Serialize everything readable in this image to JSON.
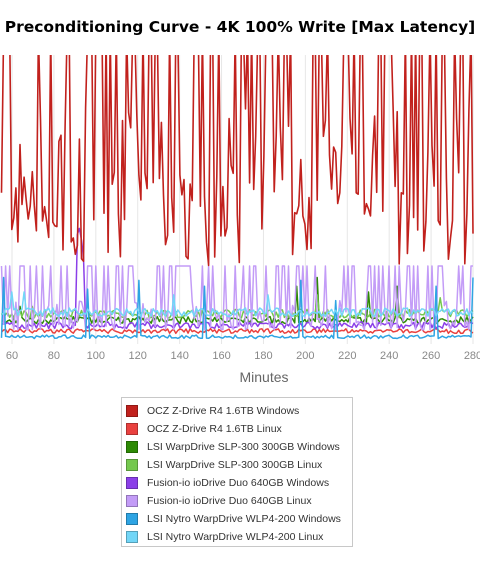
{
  "chart_data": {
    "type": "line",
    "title": "Preconditioning Curve - 4K 100% Write [Max Latency]",
    "xlabel": "Minutes",
    "ylabel": "",
    "xlim": [
      55,
      280
    ],
    "ylim": [
      0,
      100
    ],
    "xticks": [
      60,
      80,
      100,
      120,
      140,
      160,
      180,
      200,
      220,
      240,
      260,
      280
    ],
    "grid": "vertical",
    "legend_position": "bottom",
    "series": [
      {
        "name": "OCZ Z-Drive R4 1.6TB Windows",
        "color": "#c1211d",
        "pattern": {
          "type": "spiky",
          "base": 60,
          "amp": 44,
          "min": 27,
          "max": 100,
          "clip_top": true,
          "seed": 11,
          "steps": 230
        }
      },
      {
        "name": "OCZ Z-Drive R4 1.6TB Linux",
        "color": "#e9413f",
        "pattern": {
          "type": "noise",
          "base": 4.5,
          "amp": 0.8,
          "seed": 3,
          "steps": 230
        }
      },
      {
        "name": "LSI WarpDrive SLP-300 300GB Windows",
        "color": "#2d8a04",
        "pattern": {
          "type": "noise",
          "base": 8.3,
          "amp": 1.2,
          "seed": 5,
          "steps": 230,
          "spikes": [
            [
              64,
              13
            ],
            [
              196,
              20
            ],
            [
              206,
              23
            ],
            [
              230,
              18
            ],
            [
              244,
              20
            ]
          ]
        }
      },
      {
        "name": "LSI WarpDrive SLP-300 300GB Linux",
        "color": "#74c84e",
        "pattern": {
          "type": "noise",
          "base": 10.5,
          "amp": 1.5,
          "seed": 7,
          "steps": 230,
          "spikes": [
            [
              70,
              13
            ],
            [
              206,
              17
            ],
            [
              264,
              16
            ]
          ]
        }
      },
      {
        "name": "Fusion-io ioDrive Duo 640GB Windows",
        "color": "#8b3fe8",
        "pattern": {
          "type": "noise",
          "base": 6.5,
          "amp": 1.2,
          "seed": 9,
          "steps": 230,
          "spikes": [
            [
              91,
              38
            ],
            [
              92,
              40
            ],
            [
              93,
              36
            ],
            [
              94,
              30
            ]
          ]
        }
      },
      {
        "name": "Fusion-io ioDrive Duo 640GB Linux",
        "color": "#c39cf7",
        "pattern": {
          "type": "spiky",
          "base": 9,
          "amp": 12,
          "min": 5,
          "max": 27,
          "seed": 13,
          "steps": 230
        }
      },
      {
        "name": "LSI Nytro WarpDrive WLP4-200 Windows",
        "color": "#2ea4e3",
        "pattern": {
          "type": "noise",
          "base": 2.5,
          "amp": 0.6,
          "seed": 15,
          "steps": 230,
          "spikes": [
            [
              56,
              23
            ],
            [
              96,
              19
            ],
            [
              121,
              22
            ],
            [
              152,
              20
            ],
            [
              198,
              22
            ],
            [
              214,
              15
            ],
            [
              262,
              20
            ],
            [
              280,
              23
            ]
          ]
        }
      },
      {
        "name": "LSI Nytro WarpDrive WLP4-200 Linux",
        "color": "#72d6f7",
        "pattern": {
          "type": "noise",
          "base": 11,
          "amp": 1.5,
          "seed": 17,
          "steps": 230,
          "spikes": [
            [
              60,
              18
            ],
            [
              66,
              18
            ],
            [
              137,
              17
            ],
            [
              182,
              17
            ]
          ]
        }
      }
    ]
  }
}
